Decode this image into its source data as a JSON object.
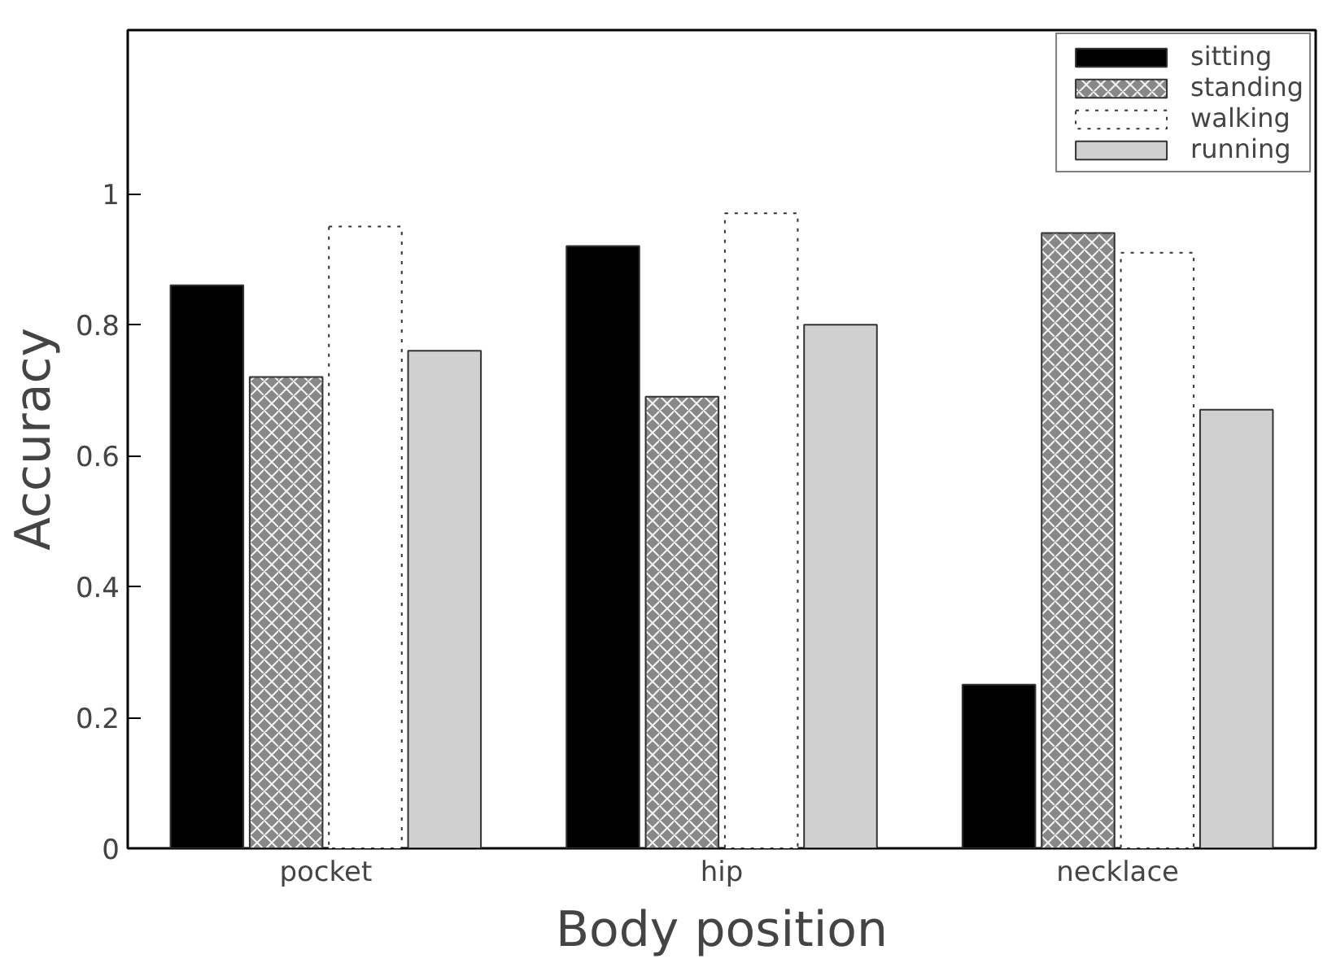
{
  "chart_data": {
    "type": "bar",
    "xlabel": "Body position",
    "ylabel": "Accuracy",
    "categories": [
      "pocket",
      "hip",
      "necklace"
    ],
    "series": [
      {
        "name": "sitting",
        "color": "#000000",
        "values": [
          0.86,
          0.92,
          0.25
        ]
      },
      {
        "name": "standing",
        "color": "#888888",
        "values": [
          0.72,
          0.69,
          0.94
        ]
      },
      {
        "name": "walking",
        "color": "#ffffff",
        "values": [
          0.95,
          0.97,
          0.91
        ]
      },
      {
        "name": "running",
        "color": "#d0d0d0",
        "values": [
          0.76,
          0.8,
          0.67
        ]
      }
    ],
    "ylim": [
      0,
      1.25
    ],
    "yticks": [
      0,
      0.2,
      0.4,
      0.6,
      0.8,
      1
    ],
    "grid": false,
    "legend": "top right"
  }
}
